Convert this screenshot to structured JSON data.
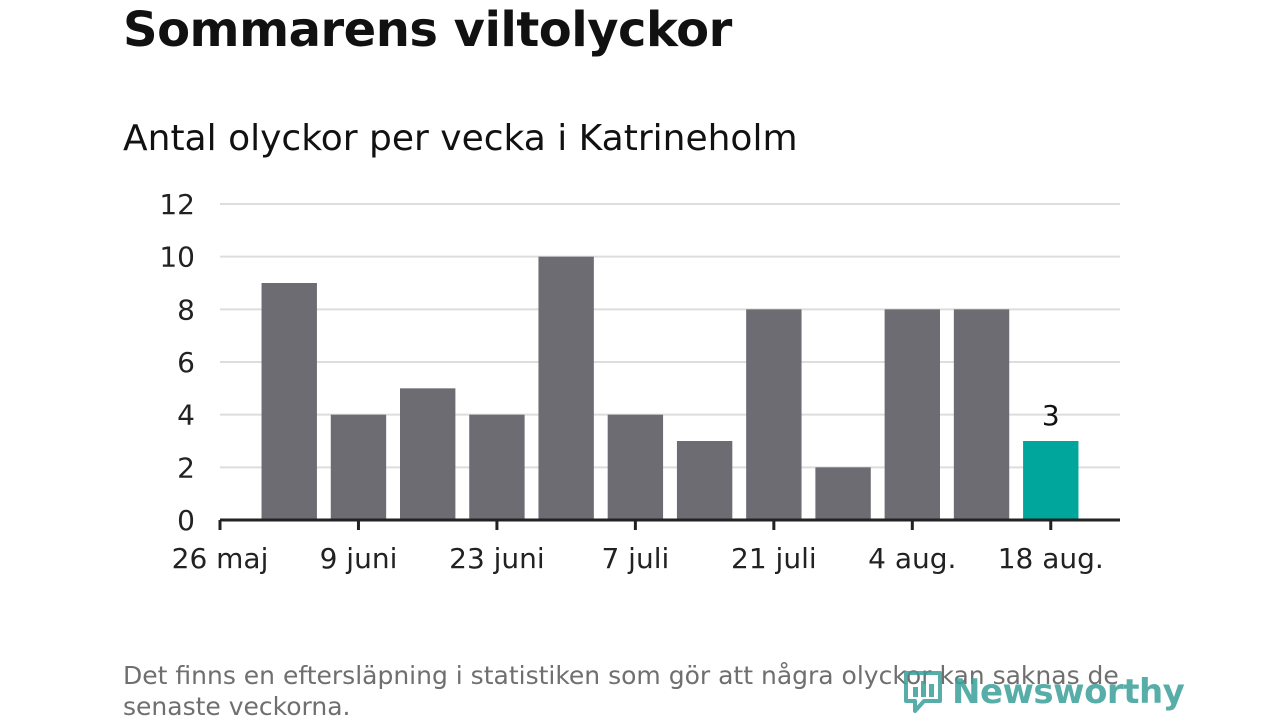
{
  "title": "Sommarens viltolyckor",
  "subtitle": "Antal olyckor per vecka i Katrineholm",
  "footnote": "Det finns en eftersläpning i statistiken som gör att några olyckor kan saknas de senaste veckorna.",
  "brand": {
    "name": "Newsworthy",
    "icon": "newsworthy-logo-icon",
    "color": "#3a9f9a"
  },
  "colors": {
    "bar": "#6d6c72",
    "highlight": "#00a69b",
    "grid": "#dddddd",
    "axis": "#222222"
  },
  "chart_data": {
    "type": "bar",
    "title": "Antal olyckor per vecka i Katrineholm",
    "xlabel": "",
    "ylabel": "",
    "ylim": [
      0,
      12
    ],
    "yticks": [
      0,
      2,
      4,
      6,
      8,
      10,
      12
    ],
    "xtick_labels": [
      "26 maj",
      "9 juni",
      "23 juni",
      "7 juli",
      "21 juli",
      "4 aug.",
      "18 aug."
    ],
    "values": [
      9,
      4,
      5,
      4,
      10,
      4,
      3,
      8,
      2,
      8,
      8,
      3
    ],
    "highlight_index": 11,
    "highlight_label": "3",
    "grid": true,
    "legend": "none"
  }
}
